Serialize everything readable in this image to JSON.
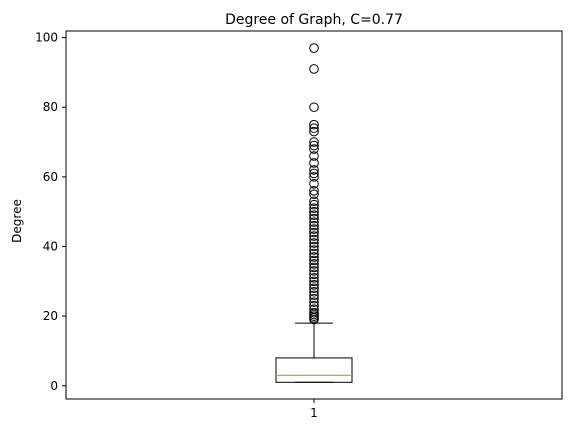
{
  "chart_data": {
    "type": "box",
    "title": "Degree of Graph, C=0.77",
    "xlabel": "",
    "ylabel": "Degree",
    "categories": [
      "1"
    ],
    "ylim": [
      -3.8,
      101.9
    ],
    "yticks": [
      0,
      20,
      40,
      60,
      80,
      100
    ],
    "grid": false,
    "legend": "none",
    "box": {
      "whisker_low": 1,
      "q1": 1,
      "median": 3,
      "q3": 8,
      "whisker_high": 18
    },
    "outliers": [
      19,
      19.5,
      20,
      20.5,
      21,
      22,
      23,
      24,
      25,
      26,
      27,
      28,
      29,
      30,
      31,
      32,
      33,
      34,
      35,
      36,
      37,
      38,
      39,
      40,
      41,
      42,
      43,
      44,
      45,
      46,
      47,
      48,
      49,
      50,
      51,
      52,
      53,
      55,
      56,
      58,
      60,
      61,
      62,
      64,
      66,
      68,
      69,
      70,
      73,
      74,
      75,
      80,
      91,
      97
    ],
    "colors": {
      "box": "#000000",
      "median": "#ff7f0e",
      "outlier": "#000000"
    }
  }
}
